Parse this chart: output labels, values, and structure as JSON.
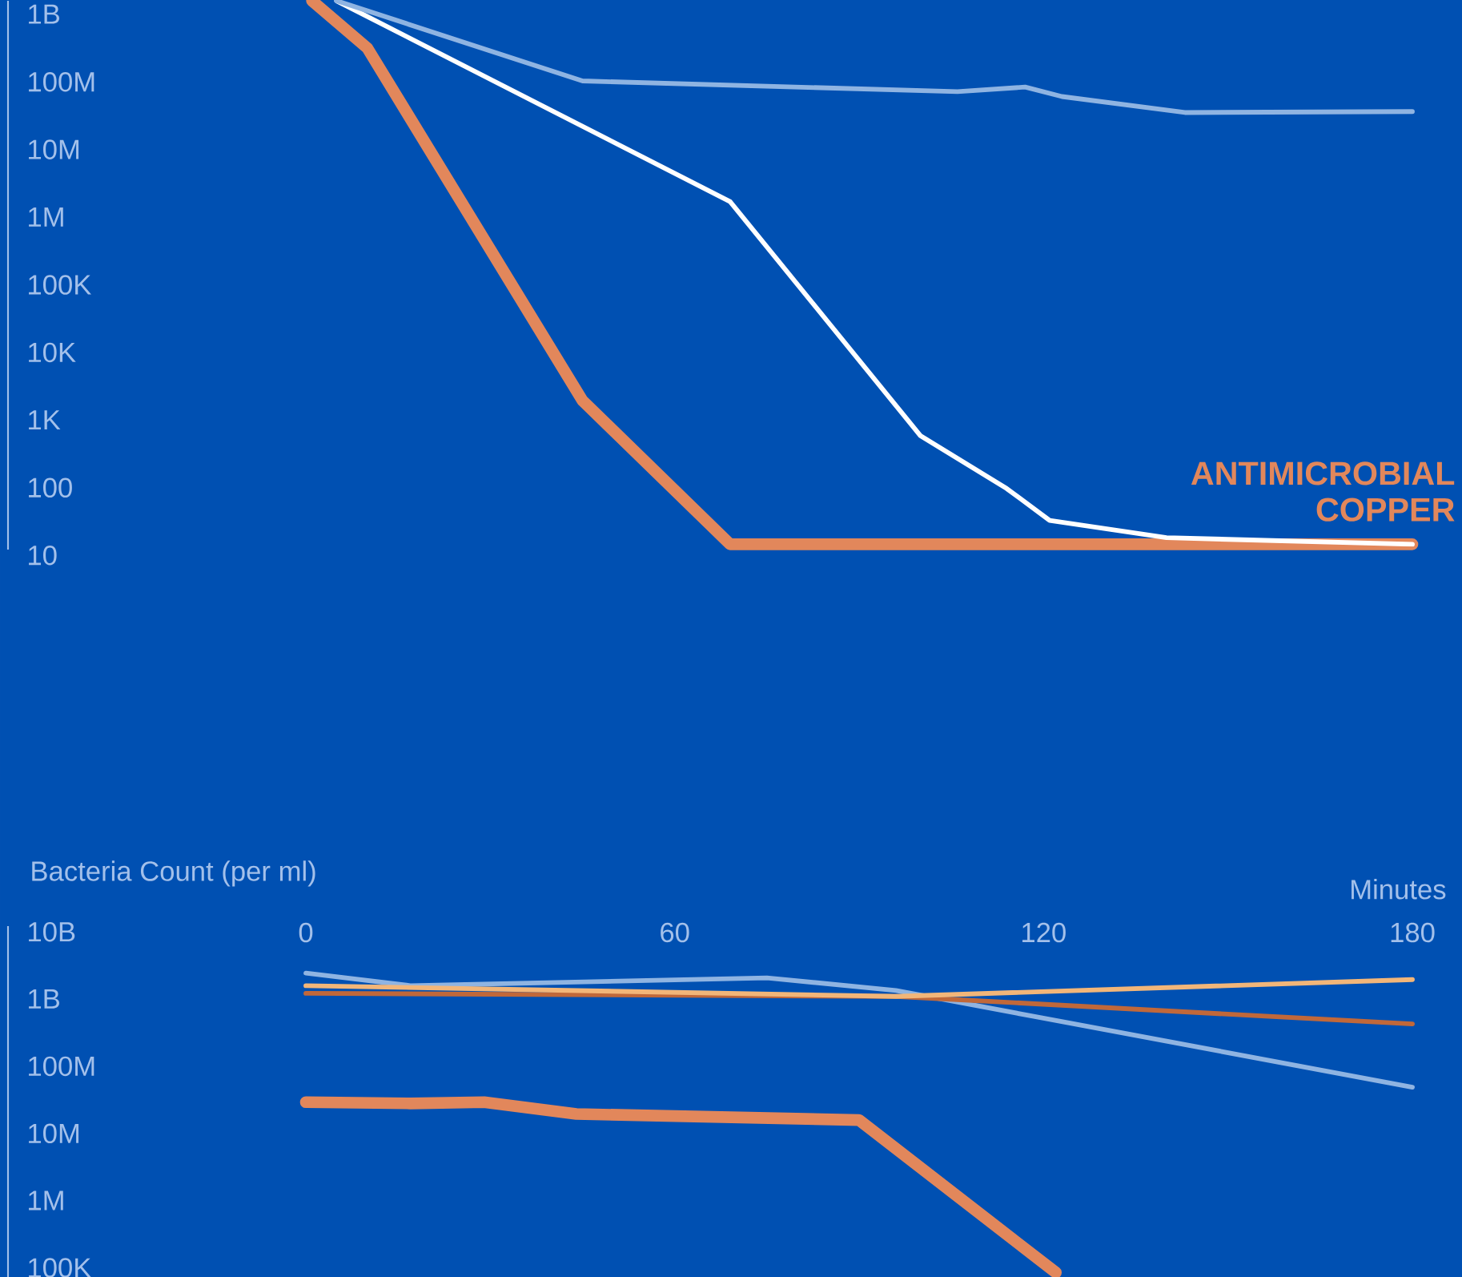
{
  "chart_data": [
    {
      "type": "line",
      "log": "y",
      "tick_labels": "y",
      "xlim": [
        0,
        180
      ],
      "ylim": [
        10,
        1300000000
      ],
      "yticks": [
        10,
        100,
        {
          "value": 1000,
          "label": "1K"
        },
        {
          "value": 10000,
          "label": "10K"
        },
        {
          "value": 100000,
          "label": "100K"
        },
        {
          "value": 1000000,
          "label": "1M"
        },
        {
          "value": 10000000,
          "label": "10M"
        },
        {
          "value": 100000000,
          "label": "100M"
        },
        {
          "value": 1000000000,
          "label": "1B"
        }
      ],
      "series": [
        {
          "name": "ANTIMICROBIAL COPPER",
          "color": "#e2875b",
          "x": [
            1,
            10,
            45,
            69,
            180
          ],
          "values": [
            1300000000,
            260000000,
            1600,
            12,
            12
          ]
        },
        {
          "color": "#ffffff",
          "x": [
            5,
            69,
            100,
            114,
            121,
            140,
            180
          ],
          "values": [
            1300000000,
            1400000,
            480,
            80,
            27,
            15,
            12
          ]
        },
        {
          "color": "#8fb4e2",
          "x": [
            5,
            45,
            106,
            117,
            123,
            143,
            180
          ],
          "values": [
            1300000000,
            85000000,
            59000000,
            69000000,
            50000000,
            29000000,
            30000000
          ]
        }
      ]
    },
    {
      "type": "line",
      "log": "y",
      "ylabel": "Bacteria Count (per ml)",
      "xlabel": "Minutes",
      "xlim": [
        0,
        180
      ],
      "ylim": [
        60000,
        10000000000
      ],
      "xticks": [
        0,
        60,
        120,
        180
      ],
      "yticks": [
        {
          "value": 100000,
          "label": "100K"
        },
        {
          "value": 1000000,
          "label": "1M"
        },
        {
          "value": 10000000,
          "label": "10M"
        },
        {
          "value": 100000000,
          "label": "100M"
        },
        {
          "value": 1000000000,
          "label": "1B"
        },
        {
          "value": 10000000000,
          "label": "10B"
        }
      ],
      "series": [
        {
          "color": "#e2875b",
          "x": [
            0,
            17,
            29,
            44,
            90,
            122
          ],
          "values": [
            24000000,
            23000000,
            24000000,
            16000000,
            13000000,
            70000
          ]
        },
        {
          "color": "#8fb4e2",
          "x": [
            0,
            17,
            75,
            96,
            180
          ],
          "values": [
            2000000000,
            1300000000,
            1700000000,
            1100000000,
            40000000
          ]
        },
        {
          "color": "#c0683a",
          "x": [
            0,
            96,
            180
          ],
          "values": [
            1000000000,
            900000000,
            350000000
          ]
        },
        {
          "color": "#f2b679",
          "x": [
            0,
            96,
            180
          ],
          "values": [
            1300000000,
            900000000,
            1600000000
          ]
        }
      ]
    }
  ]
}
